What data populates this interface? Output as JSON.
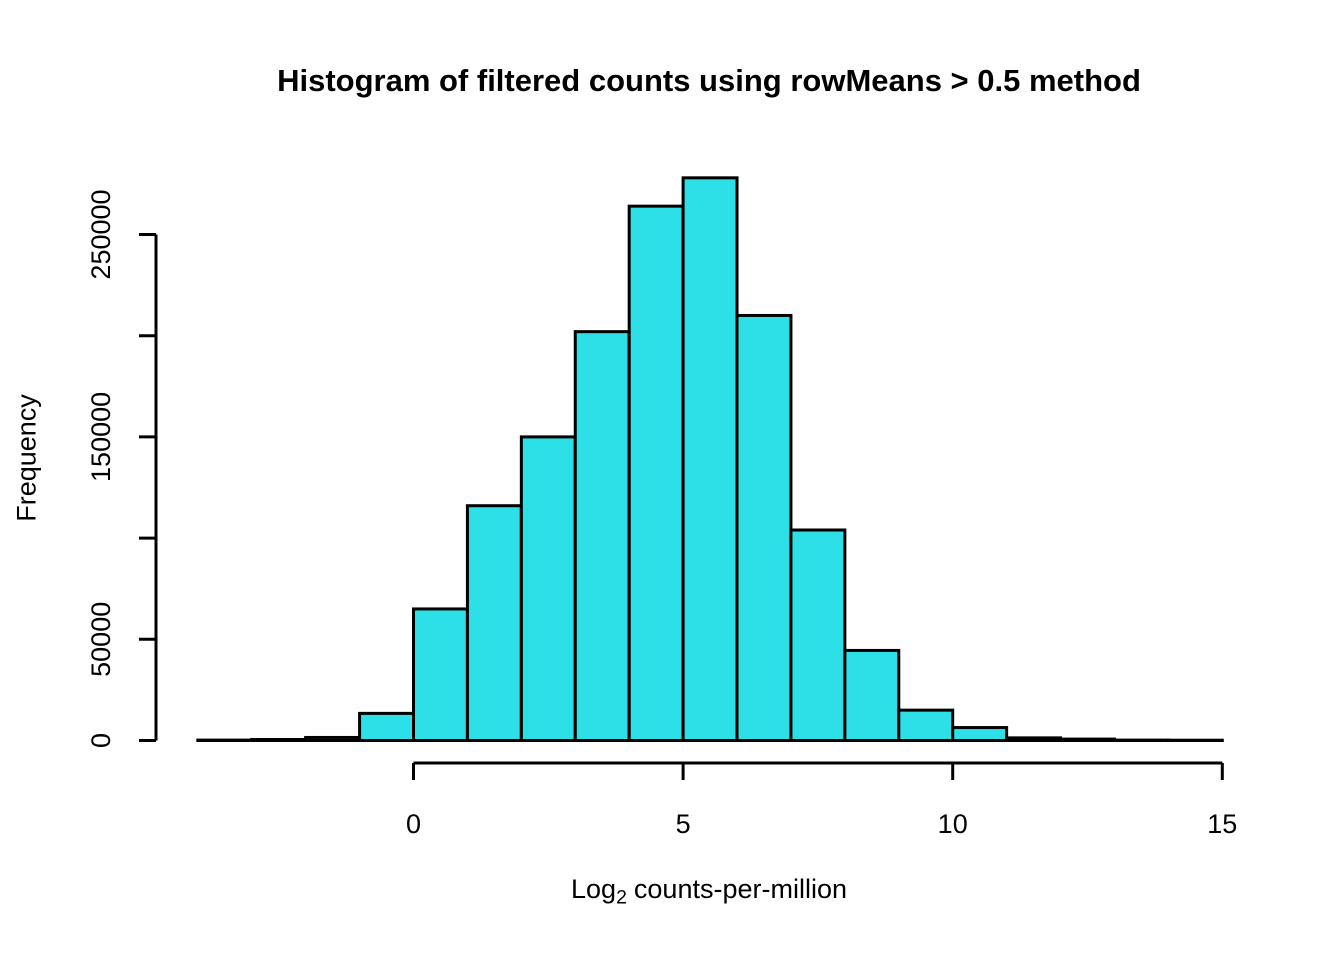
{
  "figure": {
    "title": "Histogram of filtered counts using rowMeans > 0.5 method",
    "ylabel": "Frequency",
    "xlabel": {
      "prefix": "Log",
      "sub": "2",
      "suffix": "counts-per-million"
    }
  },
  "chart_data": {
    "type": "bar",
    "subtype": "histogram",
    "title": "Histogram of filtered counts using rowMeans > 0.5 method",
    "xlabel": "Log2 counts-per-million",
    "ylabel": "Frequency",
    "xlim": [
      -4,
      15
    ],
    "ylim": [
      0,
      250000
    ],
    "grid": false,
    "legend": false,
    "breaks": [
      -4,
      -3,
      -2,
      -1,
      0,
      1,
      2,
      3,
      4,
      5,
      6,
      7,
      8,
      9,
      10,
      11,
      12,
      13,
      14,
      15
    ],
    "counts": [
      200,
      500,
      1500,
      13400,
      65000,
      116000,
      150000,
      202000,
      264000,
      278000,
      210000,
      104000,
      44500,
      15000,
      6400,
      1300,
      700,
      200,
      100
    ],
    "x_ticks": [
      {
        "value": 0,
        "label": "0"
      },
      {
        "value": 5,
        "label": "5"
      },
      {
        "value": 10,
        "label": "10"
      },
      {
        "value": 15,
        "label": "15"
      }
    ],
    "y_ticks": [
      {
        "value": 0,
        "label": "0"
      },
      {
        "value": 50000,
        "label": "50000"
      },
      {
        "value": 100000,
        "label": ""
      },
      {
        "value": 150000,
        "label": "150000"
      },
      {
        "value": 200000,
        "label": ""
      },
      {
        "value": 250000,
        "label": "250000"
      }
    ],
    "colors": {
      "bar_fill": "#2DDFE6",
      "bar_stroke": "#000000",
      "axis": "#000000",
      "text": "#000000",
      "background": "#FFFFFF"
    }
  }
}
